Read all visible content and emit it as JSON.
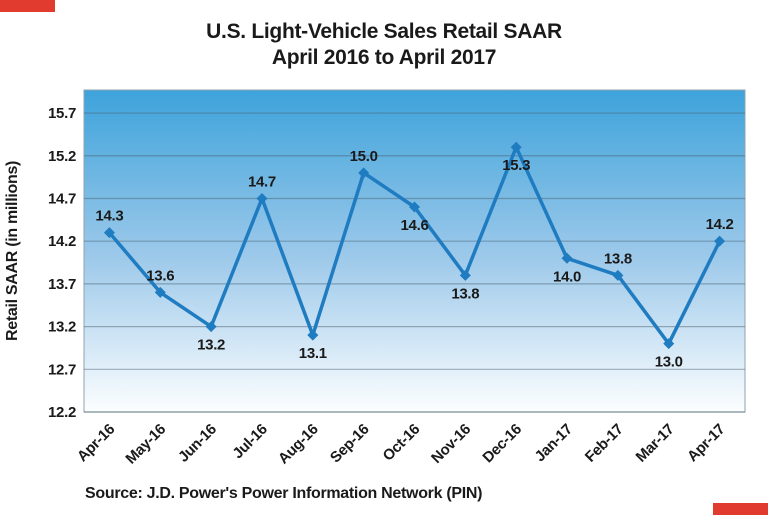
{
  "page": {
    "accent_red": "#E13B30",
    "text_color": "#1a1a1a"
  },
  "title": {
    "line1": "U.S. Light-Vehicle Sales Retail SAAR",
    "line2": "April 2016 to April 2017"
  },
  "y_axis_title": "Retail SAAR (in millions)",
  "source_note": "Source: J.D. Power's Power Information Network (PIN)",
  "chart_data": {
    "type": "line",
    "title": "U.S. Light-Vehicle Sales Retail SAAR",
    "subtitle": "April 2016 to April 2017",
    "xlabel": "",
    "ylabel": "Retail SAAR (in millions)",
    "categories": [
      "Apr-16",
      "May-16",
      "Jun-16",
      "Jul-16",
      "Aug-16",
      "Sep-16",
      "Oct-16",
      "Nov-16",
      "Dec-16",
      "Jan-17",
      "Feb-17",
      "Mar-17",
      "Apr-17"
    ],
    "series": [
      {
        "name": "Retail SAAR",
        "values": [
          14.3,
          13.6,
          13.2,
          14.7,
          13.1,
          15.0,
          14.6,
          13.8,
          15.3,
          14.0,
          13.8,
          13.0,
          14.2
        ],
        "color": "#1F7CC1"
      }
    ],
    "data_labels": [
      "14.3",
      "13.6",
      "13.2",
      "14.7",
      "13.1",
      "15.0",
      "14.6",
      "13.8",
      "15.3",
      "14.0",
      "13.8",
      "13.0",
      "14.2"
    ],
    "label_positions": [
      "above",
      "above",
      "below",
      "above",
      "below",
      "above",
      "below",
      "below",
      "below",
      "below",
      "above",
      "below",
      "above"
    ],
    "y_ticks": [
      15.7,
      15.2,
      14.7,
      14.2,
      13.7,
      13.2,
      12.7,
      12.2
    ],
    "ylim": [
      12.2,
      15.97
    ],
    "grid": true,
    "legend": false,
    "marker": "diamond",
    "plot_bg_gradient": [
      "#3DA3DB",
      "#9DC9EA",
      "#FCFEFF"
    ],
    "gridline_color": "rgba(70,90,105,0.45)",
    "plot_border_color": "#8FA3AE"
  }
}
